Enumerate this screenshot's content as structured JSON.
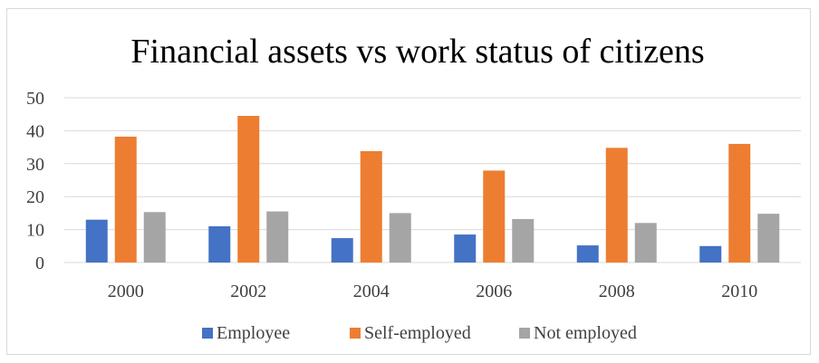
{
  "chart_data": {
    "type": "bar",
    "title": "Financial assets vs work status of citizens",
    "xlabel": "",
    "ylabel": "",
    "categories": [
      "2000",
      "2002",
      "2004",
      "2006",
      "2008",
      "2010"
    ],
    "ylim": [
      0,
      50
    ],
    "yticks": [
      0,
      10,
      20,
      30,
      40,
      50
    ],
    "grid": true,
    "legend_position": "bottom",
    "series": [
      {
        "name": "Employee",
        "color": "#4472C4",
        "values": [
          13,
          11,
          7.4,
          8.5,
          5.2,
          5
        ]
      },
      {
        "name": "Self-employed",
        "color": "#ED7D31",
        "values": [
          38.2,
          44.5,
          33.8,
          27.9,
          34.8,
          36
        ]
      },
      {
        "name": "Not employed",
        "color": "#A5A5A5",
        "values": [
          15.3,
          15.5,
          15,
          13.2,
          12,
          14.8
        ]
      }
    ]
  }
}
